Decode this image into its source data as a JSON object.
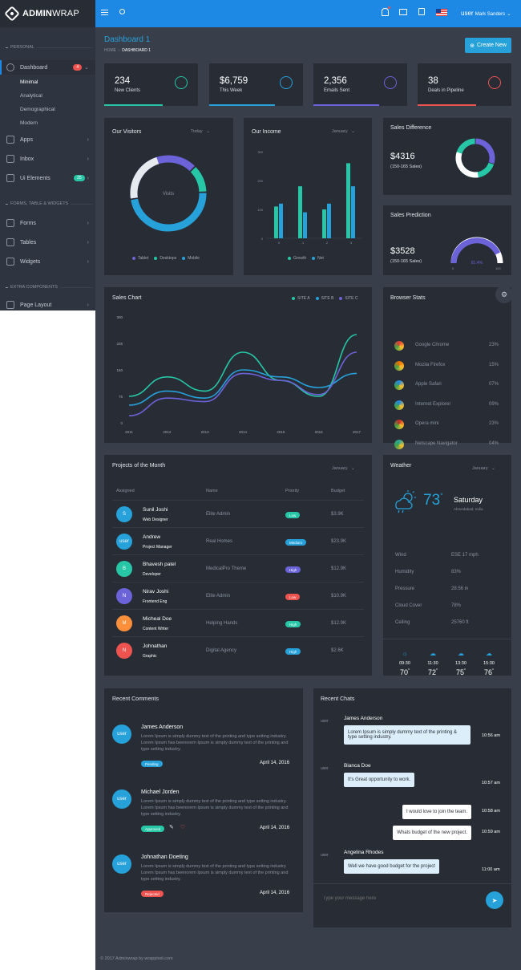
{
  "brand": {
    "bold": "ADMIN",
    "light": "WRAP"
  },
  "topbar": {
    "user_prefix": "user",
    "user_name": "Mark Sanders"
  },
  "sidebar": {
    "sections": [
      "PERSONAL",
      "FORMS, TABLE & WIDGETS",
      "EXTRA COMPONENTS"
    ],
    "dashboard": {
      "label": "Dashboard",
      "badge": "4"
    },
    "subitems": [
      "Minimal",
      "Analytical",
      "Demographical",
      "Modern"
    ],
    "items": [
      {
        "label": "Apps"
      },
      {
        "label": "Inbox"
      },
      {
        "label": "Ui Elements",
        "badge": "25"
      },
      {
        "label": "Forms"
      },
      {
        "label": "Tables"
      },
      {
        "label": "Widgets"
      },
      {
        "label": "Page Layout"
      }
    ]
  },
  "header": {
    "title": "Dashboard 1",
    "crumb_home": "HOME",
    "crumb_current": "DASHBOARD 1",
    "create_button": "Create New"
  },
  "stats": [
    {
      "value": "234",
      "label": "New Clients",
      "color": "#26c6a6",
      "fill": 0.62
    },
    {
      "value": "$6,759",
      "label": "This Week",
      "color": "#26a1d9",
      "fill": 0.7
    },
    {
      "value": "2,356",
      "label": "Emails Sent",
      "color": "#6c63d9",
      "fill": 0.7
    },
    {
      "value": "38",
      "label": "Deals in Pipeline",
      "color": "#ef5350",
      "fill": 0.62
    }
  ],
  "visitors": {
    "title": "Our Visitors",
    "filter": "Today",
    "center": "Visits",
    "legend": [
      "Tablet",
      "Desktops",
      "Mobile"
    ]
  },
  "income": {
    "title": "Our Income",
    "filter": "January",
    "legend": [
      "Growth",
      "Net"
    ]
  },
  "sales_diff": {
    "title": "Sales Difference",
    "value": "$4316",
    "sub": "(150-165 Sales)"
  },
  "sales_pred": {
    "title": "Sales Prediction",
    "value": "$3528",
    "sub": "(150-165 Sales)",
    "gauge": "81.4%",
    "min": "0",
    "max": "100"
  },
  "sales_chart": {
    "title": "Sales Chart",
    "legend": [
      "SITE A",
      "SITE B",
      "SITE C"
    ]
  },
  "chart_data": [
    {
      "type": "pie",
      "title": "Our Visitors",
      "categories": [
        "Tablet",
        "Desktops",
        "Mobile"
      ],
      "values": [
        40,
        12,
        48
      ],
      "colors": [
        "#6c63d9",
        "#26c6a6",
        "#26a1d9"
      ]
    },
    {
      "type": "bar",
      "title": "Our Income",
      "categories": [
        "0",
        "1",
        "2",
        "3"
      ],
      "series": [
        {
          "name": "Growth",
          "values": [
            110,
            180,
            100,
            260
          ],
          "color": "#26c6a6"
        },
        {
          "name": "Net",
          "values": [
            120,
            90,
            120,
            180
          ],
          "color": "#26a1d9"
        }
      ],
      "ylim": [
        0,
        300
      ],
      "yticks": [
        "0",
        "100",
        "200",
        "300"
      ]
    },
    {
      "type": "pie",
      "title": "Sales Difference",
      "values": [
        30,
        70
      ],
      "colors": [
        "#6c63d9",
        "#26c6a6"
      ]
    },
    {
      "type": "line",
      "title": "Sales Chart",
      "x": [
        "2011",
        "2012",
        "2013",
        "2014",
        "2015",
        "2016",
        "2017"
      ],
      "yticks": [
        "0",
        "75",
        "150",
        "225",
        "300"
      ],
      "ylim": [
        0,
        300
      ],
      "series": [
        {
          "name": "SITE A",
          "values": [
            75,
            130,
            90,
            200,
            120,
            75,
            250
          ],
          "color": "#26c6a6"
        },
        {
          "name": "SITE B",
          "values": [
            50,
            90,
            70,
            150,
            130,
            100,
            140
          ],
          "color": "#26a1d9"
        },
        {
          "name": "SITE C",
          "values": [
            20,
            70,
            60,
            140,
            120,
            80,
            200
          ],
          "color": "#6c63d9"
        }
      ]
    }
  ],
  "browser": {
    "title": "Browser Stats",
    "rows": [
      {
        "name": "Google Chrome",
        "pct": "23%",
        "color": "#e53935"
      },
      {
        "name": "Mozila Firefox",
        "pct": "15%",
        "color": "#ef6c00"
      },
      {
        "name": "Apple Safari",
        "pct": "07%",
        "color": "#1e88e5"
      },
      {
        "name": "Internet Explorer",
        "pct": "09%",
        "color": "#1e88e5"
      },
      {
        "name": "Opera mini",
        "pct": "23%",
        "color": "#c62828"
      },
      {
        "name": "Netscape Navigator",
        "pct": "04%",
        "color": "#26a69a"
      }
    ]
  },
  "projects": {
    "title": "Projects of the Month",
    "filter": "January",
    "headers": [
      "Assigned",
      "Name",
      "Priority",
      "Budget"
    ],
    "rows": [
      {
        "initial": "S",
        "color": "#26a1d9",
        "name": "Sunil Joshi",
        "role": "Web Designer",
        "project": "Elite Admin",
        "priority": "Low",
        "pcolor": "#26c6a6",
        "budget": "$3.9K"
      },
      {
        "initial": "user",
        "color": "#26a1d9",
        "name": "Andrew",
        "role": "Project Manager",
        "project": "Real Homes",
        "priority": "Medium",
        "pcolor": "#26a1d9",
        "budget": "$23.9K"
      },
      {
        "initial": "B",
        "color": "#26c6a6",
        "name": "Bhavesh patel",
        "role": "Developer",
        "project": "MedicalPro Theme",
        "priority": "High",
        "pcolor": "#6c63d9",
        "budget": "$12.9K"
      },
      {
        "initial": "N",
        "color": "#6c63d9",
        "name": "Nirav Joshi",
        "role": "Frontend Eng",
        "project": "Elite Admin",
        "priority": "Low",
        "pcolor": "#ef5350",
        "budget": "$10.9K"
      },
      {
        "initial": "M",
        "color": "#ff8f3a",
        "name": "Micheal Doe",
        "role": "Content Writer",
        "project": "Helping Hands",
        "priority": "High",
        "pcolor": "#26c6a6",
        "budget": "$12.9K"
      },
      {
        "initial": "N",
        "color": "#ef5350",
        "name": "Johnathan",
        "role": "Graphic",
        "project": "Digital Agency",
        "priority": "High",
        "pcolor": "#26a1d9",
        "budget": "$2.6K"
      }
    ]
  },
  "weather": {
    "title": "Weather",
    "filter": "January",
    "temp": "73",
    "deg": "°",
    "day": "Saturday",
    "location": "Ahmedabad, India",
    "rows": [
      {
        "k": "Wind",
        "v": "ESE 17 mph"
      },
      {
        "k": "Humidity",
        "v": "83%"
      },
      {
        "k": "Pressure",
        "v": "28.56 in"
      },
      {
        "k": "Cloud Cover",
        "v": "78%"
      },
      {
        "k": "Ceiling",
        "v": "25760 ft"
      }
    ],
    "hours": [
      {
        "t": "09:30",
        "v": "70"
      },
      {
        "t": "11:30",
        "v": "72"
      },
      {
        "t": "13:30",
        "v": "75"
      },
      {
        "t": "15:30",
        "v": "76"
      }
    ]
  },
  "comments": {
    "title": "Recent Comments",
    "lorem": "Lorem Ipsum is simply dummy text of the printing and type setting industry. Lorem Ipsum has beenorem Ipsum is simply dummy text of the printing and type setting industry.",
    "items": [
      {
        "name": "James Anderson",
        "status": "Pending",
        "scolor": "#26a1d9",
        "date": "April 14, 2016"
      },
      {
        "name": "Michael Jorden",
        "status": "Approved",
        "scolor": "#26c6a6",
        "date": "April 14, 2016"
      },
      {
        "name": "Johnathan Doeting",
        "status": "Rejected",
        "scolor": "#ef5350",
        "date": "April 14, 2016"
      }
    ]
  },
  "chats": {
    "title": "Recent Chats",
    "avatar": "user",
    "placeholder": "Type your message here",
    "items": [
      {
        "side": "left",
        "name": "James Anderson",
        "text": "Lorem Ipsum is simply dummy text of the printing & type setting industry.",
        "time": "10:56 am"
      },
      {
        "side": "left",
        "name": "Bianca Doe",
        "text": "It's Great opportunity to work.",
        "time": "10:57 am"
      },
      {
        "side": "right",
        "text": "I would love to join the team.",
        "time": "10:58 am"
      },
      {
        "side": "right",
        "text": "Whats budget of the new project.",
        "time": "10:59 am"
      },
      {
        "side": "left",
        "name": "Angelina Rhodes",
        "text": "Well we have good budget for the project",
        "time": "11:00 am"
      }
    ]
  },
  "footer": "© 2017 Adminwrap by wrappixel.com"
}
